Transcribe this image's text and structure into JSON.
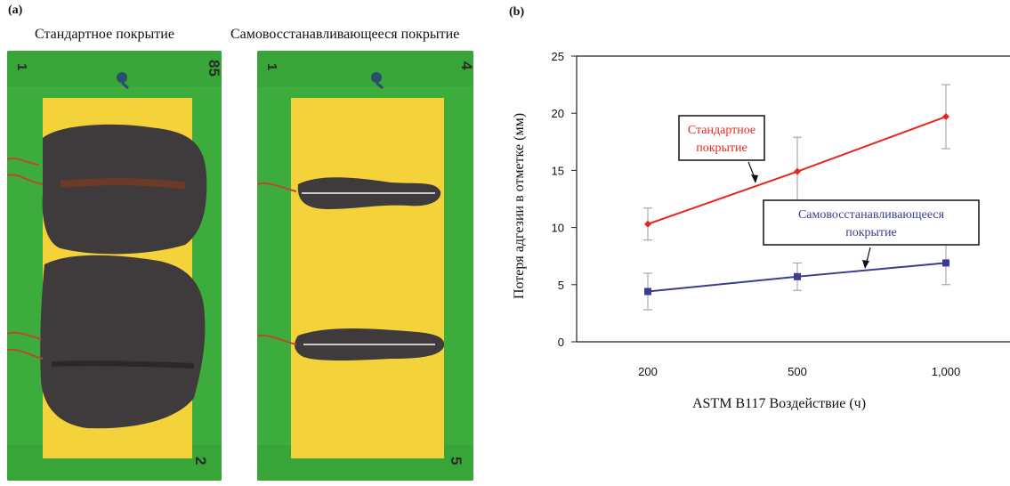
{
  "figure": {
    "panel_a_label": "(a)",
    "panel_b_label": "(b)",
    "photo_left_caption": "Стандартное покрытие",
    "photo_right_caption": "Самовосстанавливающееся покрытие",
    "left_panel_marks": {
      "top_left": "1",
      "top_right": "85",
      "bottom_right": "2"
    },
    "right_panel_marks": {
      "top_left": "1",
      "top_right": "4",
      "bottom_right": "5"
    }
  },
  "colors": {
    "standard": "#e8261f",
    "self_healing": "#3a3d8f",
    "photo_green": "#3cad3c",
    "photo_yellow": "#f4d23a",
    "corrosion": "#3f3a3c"
  },
  "chart_data": {
    "type": "line",
    "x": [
      "200",
      "500",
      "1,000"
    ],
    "xlabel": "ASTM B117 Воздействие (ч)",
    "ylabel": "Потеря адгезии в отметке (мм)",
    "ylim": [
      0,
      25
    ],
    "yticks": [
      "0",
      "5",
      "10",
      "15",
      "20",
      "25"
    ],
    "grid": false,
    "series": [
      {
        "name": "Стандартное покрытие",
        "values": [
          10.3,
          14.9,
          19.7
        ],
        "errors": [
          1.4,
          3.0,
          2.8
        ],
        "marker": "diamond"
      },
      {
        "name": "Самовосстанавливающееся покрытие",
        "values": [
          4.4,
          5.7,
          6.9
        ],
        "errors": [
          1.6,
          1.2,
          1.9
        ],
        "marker": "square"
      }
    ],
    "annotations": [
      {
        "series": 0,
        "lines": [
          "Стандартное",
          "покрытие"
        ]
      },
      {
        "series": 1,
        "lines": [
          "Самовосстанавливающееся",
          "покрытие"
        ]
      }
    ]
  }
}
